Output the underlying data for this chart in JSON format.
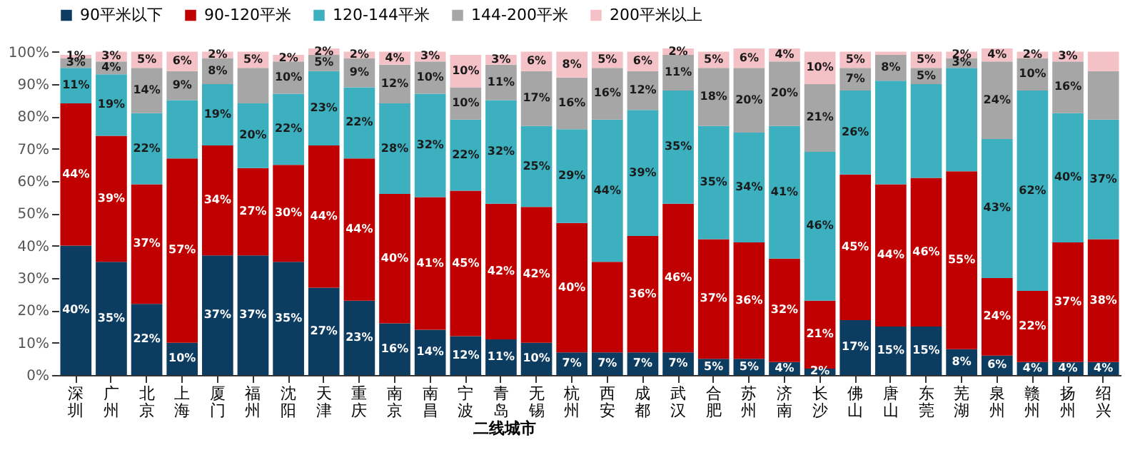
{
  "chart_data": {
    "type": "bar",
    "stacked": true,
    "legend": "top",
    "grid": false,
    "categories": [
      "深圳",
      "广州",
      "北京",
      "上海",
      "厦门",
      "福州",
      "沈阳",
      "天津",
      "重庆",
      "南京",
      "南昌",
      "宁波",
      "青岛",
      "无锡",
      "杭州",
      "西安",
      "成都",
      "武汉",
      "合肥",
      "苏州",
      "济南",
      "长沙",
      "佛山",
      "唐山",
      "东莞",
      "芜湖",
      "泉州",
      "赣州",
      "扬州",
      "绍兴"
    ],
    "ylim": [
      0,
      101
    ],
    "yticks": [
      {
        "value": 0,
        "label": "0%"
      },
      {
        "value": 10,
        "label": "10%"
      },
      {
        "value": 20,
        "label": "20%"
      },
      {
        "value": 30,
        "label": "30%"
      },
      {
        "value": 40,
        "label": "40%"
      },
      {
        "value": 50,
        "label": "50%"
      },
      {
        "value": 60,
        "label": "60%"
      },
      {
        "value": 70,
        "label": "70%"
      },
      {
        "value": 80,
        "label": "80%"
      },
      {
        "value": 90,
        "label": "90%"
      },
      {
        "value": 100,
        "label": "100%"
      }
    ],
    "annotations": [
      "二线城市"
    ],
    "series": [
      {
        "name": "90平米以下",
        "color": "#0d3c61",
        "values": [
          40,
          35,
          22,
          10,
          37,
          37,
          35,
          27,
          23,
          16,
          14,
          12,
          11,
          10,
          7,
          7,
          7,
          7,
          5,
          5,
          4,
          2,
          17,
          15,
          15,
          8,
          6,
          4,
          4,
          4
        ],
        "value_labels": [
          "40%",
          "35%",
          "22%",
          "10%",
          "37%",
          "37%",
          "35%",
          "27%",
          "23%",
          "16%",
          "14%",
          "12%",
          "11%",
          "10%",
          "7%",
          "7%",
          "7%",
          "7%",
          "5%",
          "5%",
          "4%",
          "2%",
          "17%",
          "15%",
          "15%",
          "8%",
          "6%",
          "4%",
          "4%",
          "4%"
        ]
      },
      {
        "name": "90-120平米",
        "color": "#c00000",
        "values": [
          44,
          39,
          37,
          57,
          34,
          27,
          30,
          44,
          44,
          40,
          41,
          45,
          42,
          42,
          40,
          28,
          36,
          46,
          37,
          36,
          32,
          21,
          45,
          44,
          46,
          55,
          24,
          22,
          37,
          38
        ],
        "value_labels": [
          "44%",
          "39%",
          "37%",
          "57%",
          "34%",
          "27%",
          "30%",
          "44%",
          "44%",
          "40%",
          "41%",
          "45%",
          "42%",
          "42%",
          "40%",
          null,
          "36%",
          "46%",
          "37%",
          "36%",
          "32%",
          "21%",
          "45%",
          "44%",
          "46%",
          "55%",
          "24%",
          "22%",
          "37%",
          "38%"
        ]
      },
      {
        "name": "120-144平米",
        "color": "#3cb0bf",
        "values": [
          11,
          19,
          22,
          18,
          19,
          20,
          22,
          23,
          22,
          28,
          32,
          22,
          32,
          25,
          29,
          44,
          39,
          35,
          35,
          34,
          41,
          46,
          26,
          32,
          29,
          32,
          43,
          62,
          40,
          37
        ],
        "value_labels": [
          "11%",
          "19%",
          "22%",
          null,
          "19%",
          "20%",
          "22%",
          "23%",
          "22%",
          "28%",
          "32%",
          "22%",
          "32%",
          "25%",
          "29%",
          "44%",
          "39%",
          "35%",
          "35%",
          "34%",
          "41%",
          "46%",
          "26%",
          null,
          null,
          null,
          "43%",
          "62%",
          "40%",
          "37%"
        ]
      },
      {
        "name": "144-200平米",
        "color": "#a6a6a6",
        "values": [
          3,
          4,
          14,
          9,
          8,
          11,
          10,
          5,
          9,
          12,
          10,
          10,
          11,
          17,
          16,
          16,
          12,
          11,
          18,
          20,
          20,
          21,
          7,
          8,
          5,
          3,
          24,
          10,
          16,
          15
        ],
        "value_labels": [
          "3%",
          "4%",
          "14%",
          "9%",
          "8%",
          null,
          "10%",
          "5%",
          "9%",
          "12%",
          "10%",
          "10%",
          "11%",
          "17%",
          "16%",
          "16%",
          "12%",
          "11%",
          "18%",
          "20%",
          "20%",
          "21%",
          "7%",
          "8%",
          "5%",
          "3%",
          "24%",
          "10%",
          "16%",
          null
        ]
      },
      {
        "name": "200平米以上",
        "color": "#f4c2c6",
        "values": [
          1,
          3,
          5,
          6,
          2,
          5,
          2,
          2,
          2,
          4,
          3,
          10,
          3,
          6,
          8,
          5,
          6,
          2,
          5,
          6,
          4,
          10,
          5,
          1,
          5,
          2,
          4,
          2,
          3,
          6
        ],
        "value_labels": [
          "1%",
          "3%",
          "5%",
          "6%",
          "2%",
          "5%",
          "2%",
          "2%",
          "2%",
          "4%",
          "3%",
          "10%",
          "3%",
          "6%",
          "8%",
          "5%",
          "6%",
          "2%",
          "5%",
          "6%",
          "4%",
          "10%",
          "5%",
          null,
          "5%",
          "2%",
          "4%",
          "2%",
          "3%",
          null
        ]
      }
    ]
  }
}
